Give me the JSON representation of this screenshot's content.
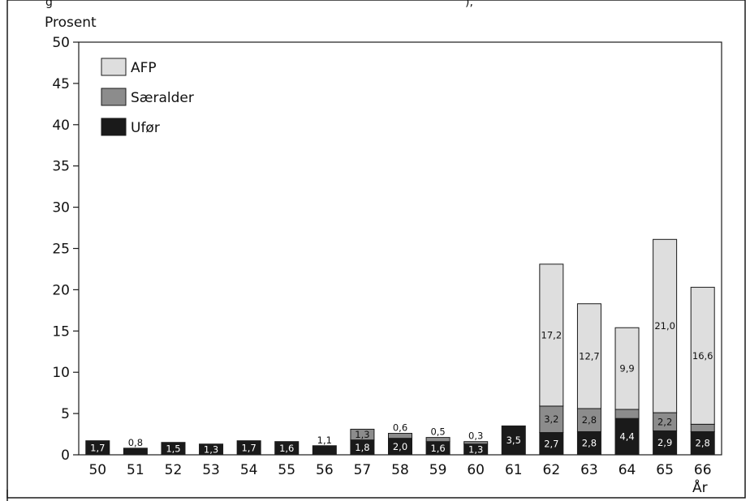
{
  "chart_data": {
    "type": "bar",
    "stacked": true,
    "title": "",
    "header_fragment": "g",
    "header_fragment_right": "),",
    "ylabel": "Prosent",
    "xlabel": "År",
    "ylim": [
      0,
      50
    ],
    "yticks": [
      0,
      5,
      10,
      15,
      20,
      25,
      30,
      35,
      40,
      45,
      50
    ],
    "categories": [
      "50",
      "51",
      "52",
      "53",
      "54",
      "55",
      "56",
      "57",
      "58",
      "59",
      "60",
      "61",
      "62",
      "63",
      "64",
      "65",
      "66"
    ],
    "legend_position": "top-left",
    "series": [
      {
        "name": "Ufør",
        "color": "#1a1a1a",
        "values": [
          1.7,
          0.8,
          1.5,
          1.3,
          1.7,
          1.6,
          1.1,
          1.8,
          2.0,
          1.6,
          1.3,
          3.5,
          2.7,
          2.8,
          4.4,
          2.9,
          2.8
        ],
        "labels": [
          "1,7",
          "0,8",
          "1,5",
          "1,3",
          "1,7",
          "1,6",
          "1,1",
          "1,8",
          "2,0",
          "1,6",
          "1,3",
          "3,5",
          "2,7",
          "2,8",
          "4,4",
          "2,9",
          "2,8"
        ]
      },
      {
        "name": "Særalder",
        "color": "#8c8c8c",
        "values": [
          0,
          0,
          0,
          0,
          0,
          0,
          0,
          1.3,
          0.6,
          0.5,
          0.3,
          0,
          3.2,
          2.8,
          1.1,
          2.2,
          0.9
        ],
        "labels": [
          "",
          "",
          "",
          "",
          "",
          "",
          "",
          "1,3",
          "0,6",
          "0,5",
          "0,3",
          "",
          "3,2",
          "2,8",
          "1,1",
          "2,2",
          "0,9"
        ]
      },
      {
        "name": "AFP",
        "color": "#dedede",
        "values": [
          0,
          0,
          0,
          0,
          0,
          0,
          0,
          0,
          0,
          0,
          0,
          0,
          17.2,
          12.7,
          9.9,
          21.0,
          16.6
        ],
        "labels": [
          "",
          "",
          "",
          "",
          "",
          "",
          "",
          "",
          "",
          "",
          "",
          "",
          "17,2",
          "12,7",
          "9,9",
          "21,0",
          "16,6"
        ]
      }
    ]
  }
}
